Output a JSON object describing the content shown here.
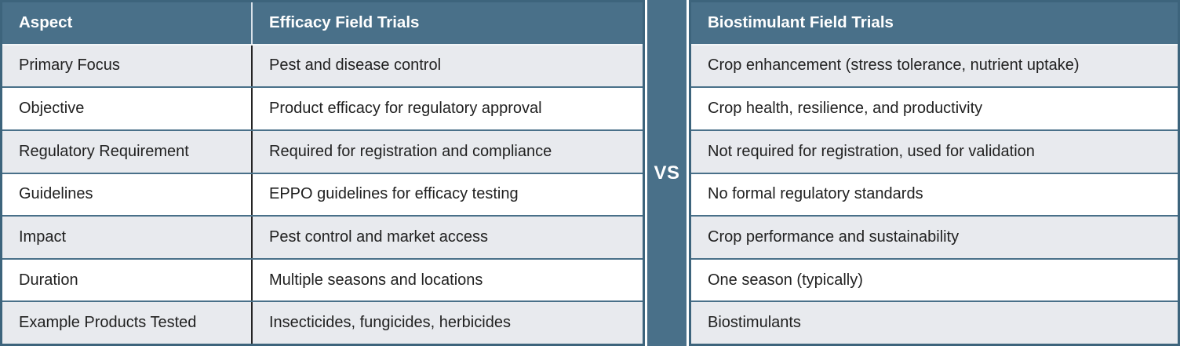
{
  "chart_data": {
    "type": "table",
    "title": "Efficacy Field Trials vs Biostimulant Field Trials",
    "columns": [
      "Aspect",
      "Efficacy Field Trials",
      "Biostimulant Field Trials"
    ],
    "divider_label": "VS",
    "rows": [
      {
        "aspect": "Primary Focus",
        "efficacy": "Pest and disease control",
        "biostimulant": "Crop enhancement (stress tolerance, nutrient uptake)"
      },
      {
        "aspect": "Objective",
        "efficacy": "Product efficacy for regulatory approval",
        "biostimulant": "Crop health, resilience, and productivity"
      },
      {
        "aspect": "Regulatory Requirement",
        "efficacy": "Required for registration and compliance",
        "biostimulant": "Not required for registration, used for validation"
      },
      {
        "aspect": "Guidelines",
        "efficacy": "EPPO guidelines for efficacy testing",
        "biostimulant": "No formal regulatory standards"
      },
      {
        "aspect": "Impact",
        "efficacy": "Pest control and market access",
        "biostimulant": "Crop performance and sustainability"
      },
      {
        "aspect": "Duration",
        "efficacy": "Multiple seasons and locations",
        "biostimulant": "One season (typically)"
      },
      {
        "aspect": "Example Products Tested",
        "efficacy": "Insecticides, fungicides, herbicides",
        "biostimulant": "Biostimulants"
      }
    ],
    "colors": {
      "header_bg": "#497089",
      "divider_bg": "#497089",
      "border": "#3d647c",
      "row_separator": "#497089",
      "row_alt_bg": "#e8eaee",
      "row_bg": "#ffffff",
      "header_text": "#ffffff",
      "body_text": "#212121",
      "column_separator": "#242424"
    },
    "layout": {
      "grid": "on",
      "header_position": "top",
      "divider_position": "center"
    }
  }
}
